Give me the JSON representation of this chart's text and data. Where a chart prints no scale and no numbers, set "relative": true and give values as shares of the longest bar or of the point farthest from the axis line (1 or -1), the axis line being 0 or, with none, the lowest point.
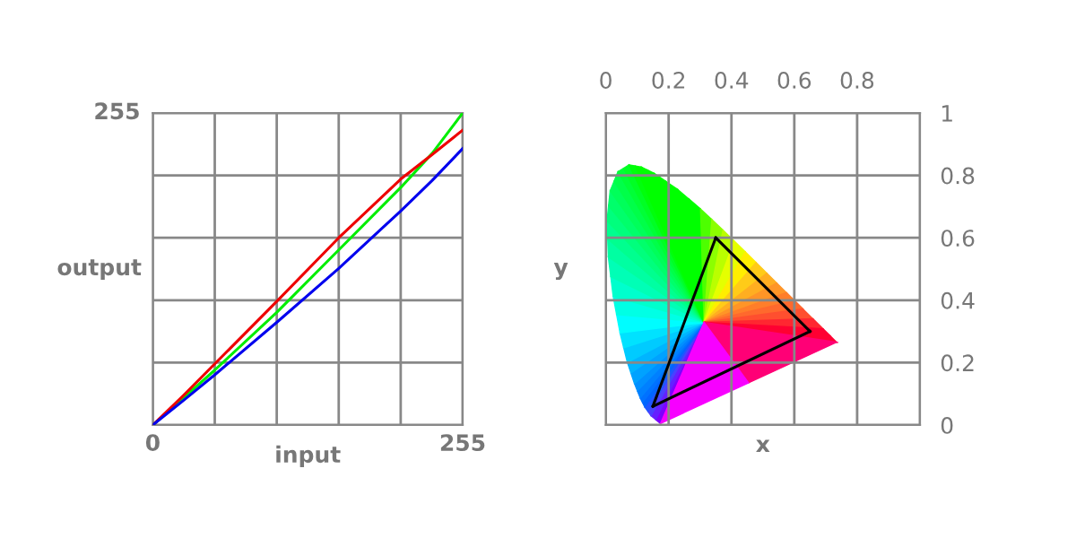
{
  "chart_data": [
    {
      "type": "line",
      "xlabel": "input",
      "ylabel": "output",
      "xlim": [
        0,
        255
      ],
      "relative": true,
      "annotations": [
        "255"
      ],
      "xticks": [
        0,
        {
          "value": 51,
          "label": null
        },
        {
          "value": 102,
          "label": null
        },
        {
          "value": 153,
          "label": null
        },
        {
          "value": 204,
          "label": null
        },
        255
      ],
      "grid": true,
      "x": [
        0,
        25,
        51,
        102,
        153,
        204,
        230,
        255
      ],
      "series": [
        {
          "color": "#00ee00",
          "values": [
            0,
            0.086,
            0.176,
            0.361,
            0.561,
            0.761,
            0.871,
            1
          ]
        },
        {
          "color": "#ee0000",
          "values": [
            0,
            0.094,
            0.196,
            0.396,
            0.6,
            0.788,
            0.867,
            0.945
          ]
        },
        {
          "color": "#0000ee",
          "values": [
            0,
            0.078,
            0.161,
            0.329,
            0.502,
            0.686,
            0.784,
            0.886
          ]
        }
      ]
    },
    {
      "type": "line",
      "xlabel": "x",
      "ylabel": "y",
      "xlim": [
        0,
        1
      ],
      "ylim": [
        0,
        1
      ],
      "xticks": [
        0,
        0.2,
        0.4,
        0.6,
        0.8,
        {
          "value": 1,
          "label": null
        }
      ],
      "yticks": [
        0,
        0.2,
        0.4,
        0.6,
        0.8,
        1
      ],
      "grid": true,
      "series": [
        {
          "color": "#000000",
          "x": [
            0.35,
            0.65
          ],
          "values": [
            0.6,
            0.3
          ]
        },
        {
          "color": "#000000",
          "x": [
            0.65,
            0.15
          ],
          "values": [
            0.3,
            0.06
          ]
        },
        {
          "color": "#000000",
          "x": [
            0.15,
            0.35
          ],
          "values": [
            0.06,
            0.6
          ]
        }
      ]
    }
  ]
}
